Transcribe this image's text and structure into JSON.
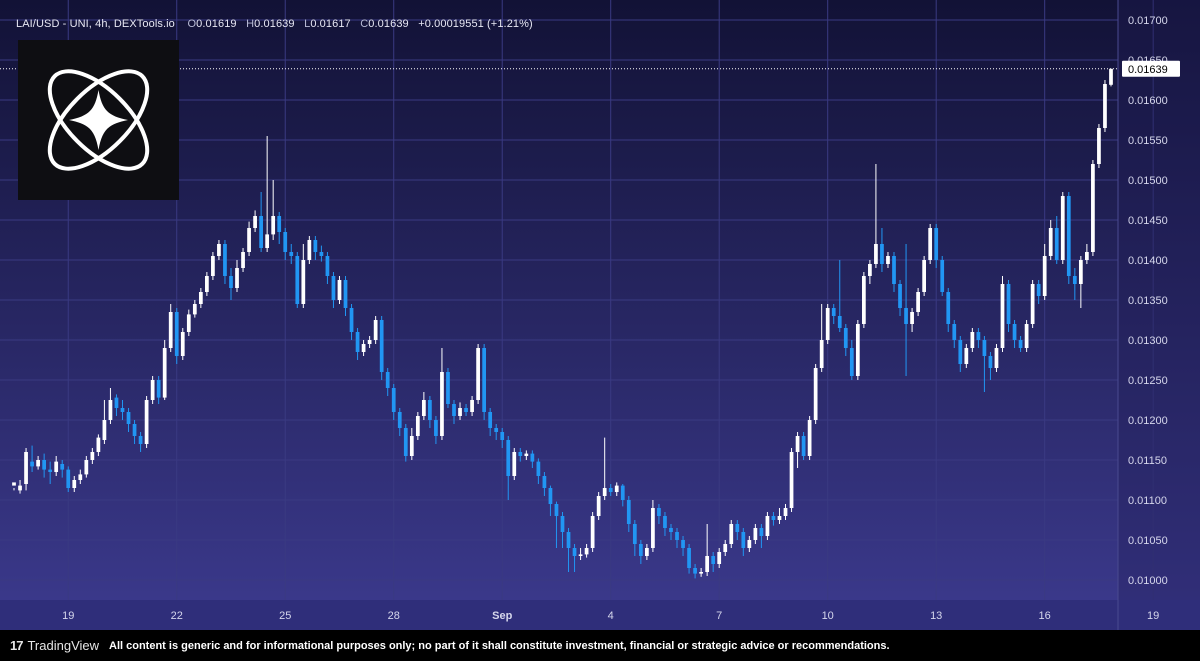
{
  "header": {
    "symbol": "LAI/USD - UNI, 4h, DEXTools.io",
    "o_label": "O",
    "o_value": "0.01619",
    "h_label": "H",
    "h_value": "0.01639",
    "l_label": "L",
    "l_value": "0.01617",
    "c_label": "C",
    "c_value": "0.01639",
    "change": "+0.00019551 (+1.21%)"
  },
  "footer": {
    "brand": "TradingView",
    "disclaimer": "All content is generic and for informational purposes only; no part of it shall constitute investment, financial or strategic advice or recommendations."
  },
  "colors": {
    "up": "#ffffff",
    "down": "#2196f3",
    "bg_top": "#121236",
    "bg_bottom": "#3c3a8e",
    "axis_bg": "#2f2e7a",
    "grid": "#3a3a82"
  },
  "icons": {
    "logo": "atom-star-logo-icon",
    "brand": "tradingview-icon"
  },
  "chart_data": {
    "type": "candlestick",
    "interval": "4h",
    "ylim": [
      0.00975,
      0.01725
    ],
    "y_ticks": [
      "0.01000",
      "0.01050",
      "0.01100",
      "0.01150",
      "0.01200",
      "0.01250",
      "0.01300",
      "0.01350",
      "0.01400",
      "0.01450",
      "0.01500",
      "0.01550",
      "0.01600",
      "0.01650",
      "0.01700"
    ],
    "x_ticks": [
      {
        "label": "19",
        "index": 9
      },
      {
        "label": "22",
        "index": 27
      },
      {
        "label": "25",
        "index": 45
      },
      {
        "label": "28",
        "index": 63
      },
      {
        "label": "Sep",
        "index": 81,
        "bold": true
      },
      {
        "label": "4",
        "index": 99
      },
      {
        "label": "7",
        "index": 117
      },
      {
        "label": "10",
        "index": 135
      },
      {
        "label": "13",
        "index": 153
      },
      {
        "label": "16",
        "index": 171
      },
      {
        "label": "19",
        "index": 189
      }
    ],
    "current_price": "0.01639",
    "candles": [
      [
        0.01118,
        0.01122,
        0.01115,
        0.01112
      ],
      [
        0.01112,
        0.01118,
        0.01125,
        0.01108
      ],
      [
        0.0112,
        0.0116,
        0.01165,
        0.01112
      ],
      [
        0.01148,
        0.01142,
        0.01168,
        0.01135
      ],
      [
        0.01142,
        0.0115,
        0.01155,
        0.01138
      ],
      [
        0.0115,
        0.01138,
        0.01158,
        0.01128
      ],
      [
        0.01138,
        0.01135,
        0.01148,
        0.0112
      ],
      [
        0.01135,
        0.01148,
        0.01155,
        0.0113
      ],
      [
        0.01145,
        0.01138,
        0.0115,
        0.01128
      ],
      [
        0.01138,
        0.01115,
        0.01142,
        0.0111
      ],
      [
        0.01115,
        0.01125,
        0.0113,
        0.0111
      ],
      [
        0.01125,
        0.01132,
        0.01138,
        0.0112
      ],
      [
        0.01132,
        0.0115,
        0.01155,
        0.01128
      ],
      [
        0.0115,
        0.0116,
        0.01165,
        0.01145
      ],
      [
        0.0116,
        0.01178,
        0.01182,
        0.01155
      ],
      [
        0.01175,
        0.012,
        0.01225,
        0.0117
      ],
      [
        0.012,
        0.01225,
        0.0124,
        0.01195
      ],
      [
        0.01228,
        0.01215,
        0.01232,
        0.01205
      ],
      [
        0.01215,
        0.0121,
        0.01225,
        0.012
      ],
      [
        0.0121,
        0.01195,
        0.01215,
        0.01185
      ],
      [
        0.01195,
        0.0118,
        0.012,
        0.0117
      ],
      [
        0.0118,
        0.0117,
        0.01185,
        0.0116
      ],
      [
        0.0117,
        0.01225,
        0.0123,
        0.01165
      ],
      [
        0.01225,
        0.0125,
        0.01255,
        0.0122
      ],
      [
        0.0125,
        0.01228,
        0.01255,
        0.0122
      ],
      [
        0.01228,
        0.0129,
        0.013,
        0.01225
      ],
      [
        0.0129,
        0.01335,
        0.01345,
        0.01285
      ],
      [
        0.01335,
        0.0128,
        0.0134,
        0.0127
      ],
      [
        0.0128,
        0.0131,
        0.01315,
        0.01275
      ],
      [
        0.0131,
        0.01332,
        0.01338,
        0.01305
      ],
      [
        0.01332,
        0.01345,
        0.0135,
        0.01328
      ],
      [
        0.01345,
        0.0136,
        0.01365,
        0.0134
      ],
      [
        0.0136,
        0.0138,
        0.01385,
        0.01355
      ],
      [
        0.0138,
        0.01405,
        0.0141,
        0.01375
      ],
      [
        0.01405,
        0.0142,
        0.01425,
        0.014
      ],
      [
        0.0142,
        0.0138,
        0.01425,
        0.0137
      ],
      [
        0.0138,
        0.01365,
        0.0139,
        0.0135
      ],
      [
        0.01365,
        0.0139,
        0.014,
        0.0136
      ],
      [
        0.0139,
        0.0141,
        0.01415,
        0.01385
      ],
      [
        0.0141,
        0.0144,
        0.01448,
        0.01405
      ],
      [
        0.0144,
        0.01455,
        0.01462,
        0.01435
      ],
      [
        0.01455,
        0.01415,
        0.01485,
        0.0141
      ],
      [
        0.01415,
        0.01432,
        0.01555,
        0.0141
      ],
      [
        0.01432,
        0.01455,
        0.015,
        0.01425
      ],
      [
        0.01455,
        0.01435,
        0.0146,
        0.0142
      ],
      [
        0.01435,
        0.0141,
        0.0144,
        0.014
      ],
      [
        0.0141,
        0.01405,
        0.0142,
        0.01395
      ],
      [
        0.01405,
        0.01345,
        0.0141,
        0.0134
      ],
      [
        0.01345,
        0.014,
        0.0142,
        0.0134
      ],
      [
        0.014,
        0.01425,
        0.0143,
        0.01395
      ],
      [
        0.01425,
        0.0141,
        0.0143,
        0.014
      ],
      [
        0.0141,
        0.01405,
        0.01418,
        0.01398
      ],
      [
        0.01405,
        0.0138,
        0.0141,
        0.0137
      ],
      [
        0.0138,
        0.0135,
        0.01385,
        0.0134
      ],
      [
        0.0135,
        0.01375,
        0.0138,
        0.01345
      ],
      [
        0.01375,
        0.0134,
        0.0138,
        0.0133
      ],
      [
        0.0134,
        0.0131,
        0.01345,
        0.013
      ],
      [
        0.0131,
        0.01285,
        0.01315,
        0.01275
      ],
      [
        0.01285,
        0.01295,
        0.013,
        0.0128
      ],
      [
        0.01295,
        0.013,
        0.01305,
        0.0129
      ],
      [
        0.013,
        0.01325,
        0.0133,
        0.01295
      ],
      [
        0.01325,
        0.0126,
        0.0133,
        0.0125
      ],
      [
        0.0126,
        0.0124,
        0.01265,
        0.0123
      ],
      [
        0.0124,
        0.0121,
        0.01245,
        0.012
      ],
      [
        0.0121,
        0.0119,
        0.01215,
        0.0118
      ],
      [
        0.0119,
        0.01155,
        0.01195,
        0.01148
      ],
      [
        0.01155,
        0.0118,
        0.0119,
        0.0115
      ],
      [
        0.0118,
        0.01205,
        0.0121,
        0.01175
      ],
      [
        0.01205,
        0.01225,
        0.01235,
        0.012
      ],
      [
        0.01225,
        0.012,
        0.0123,
        0.0119
      ],
      [
        0.012,
        0.0118,
        0.01205,
        0.0117
      ],
      [
        0.0118,
        0.0126,
        0.0129,
        0.01175
      ],
      [
        0.0126,
        0.0122,
        0.01265,
        0.01215
      ],
      [
        0.0122,
        0.01205,
        0.01225,
        0.01195
      ],
      [
        0.01205,
        0.01215,
        0.01222,
        0.012
      ],
      [
        0.01215,
        0.0121,
        0.0122,
        0.01205
      ],
      [
        0.0121,
        0.01225,
        0.0123,
        0.01205
      ],
      [
        0.01225,
        0.0129,
        0.01295,
        0.0122
      ],
      [
        0.0129,
        0.0121,
        0.01295,
        0.012
      ],
      [
        0.0121,
        0.0119,
        0.01215,
        0.0118
      ],
      [
        0.0119,
        0.01185,
        0.01195,
        0.01175
      ],
      [
        0.01185,
        0.01175,
        0.0119,
        0.01165
      ],
      [
        0.01175,
        0.0113,
        0.0118,
        0.011
      ],
      [
        0.0113,
        0.0116,
        0.01165,
        0.01125
      ],
      [
        0.0116,
        0.01155,
        0.01165,
        0.01148
      ],
      [
        0.01155,
        0.01158,
        0.01162,
        0.0115
      ],
      [
        0.01158,
        0.01148,
        0.01162,
        0.0114
      ],
      [
        0.01148,
        0.0113,
        0.01152,
        0.0112
      ],
      [
        0.0113,
        0.01115,
        0.01135,
        0.01105
      ],
      [
        0.01115,
        0.01095,
        0.01118,
        0.0108
      ],
      [
        0.01095,
        0.0108,
        0.01098,
        0.0104
      ],
      [
        0.0108,
        0.0106,
        0.01085,
        0.0104
      ],
      [
        0.0106,
        0.0104,
        0.01065,
        0.0101
      ],
      [
        0.0104,
        0.0103,
        0.01045,
        0.0101
      ],
      [
        0.0103,
        0.01032,
        0.0104,
        0.01025
      ],
      [
        0.01032,
        0.0104,
        0.01045,
        0.01028
      ],
      [
        0.0104,
        0.0108,
        0.01085,
        0.01035
      ],
      [
        0.0108,
        0.01105,
        0.0111,
        0.01075
      ],
      [
        0.01105,
        0.01115,
        0.01178,
        0.011
      ],
      [
        0.01115,
        0.0111,
        0.0112,
        0.01105
      ],
      [
        0.0111,
        0.01118,
        0.01122,
        0.01105
      ],
      [
        0.01118,
        0.011,
        0.0112,
        0.01092
      ],
      [
        0.011,
        0.0107,
        0.01105,
        0.0106
      ],
      [
        0.0107,
        0.01045,
        0.01075,
        0.0103
      ],
      [
        0.01045,
        0.0103,
        0.0105,
        0.0102
      ],
      [
        0.0103,
        0.0104,
        0.01045,
        0.01025
      ],
      [
        0.0104,
        0.0109,
        0.011,
        0.01035
      ],
      [
        0.0109,
        0.0108,
        0.01095,
        0.0107
      ],
      [
        0.0108,
        0.01065,
        0.01085,
        0.01055
      ],
      [
        0.01065,
        0.0106,
        0.0107,
        0.0105
      ],
      [
        0.0106,
        0.0105,
        0.01065,
        0.0104
      ],
      [
        0.0105,
        0.0104,
        0.01055,
        0.0103
      ],
      [
        0.0104,
        0.01015,
        0.01045,
        0.01008
      ],
      [
        0.01015,
        0.01008,
        0.0102,
        0.01002
      ],
      [
        0.01008,
        0.0101,
        0.01015,
        0.01004
      ],
      [
        0.0101,
        0.0103,
        0.0107,
        0.01005
      ],
      [
        0.0103,
        0.0102,
        0.01035,
        0.0101
      ],
      [
        0.0102,
        0.01035,
        0.0104,
        0.01015
      ],
      [
        0.01035,
        0.01045,
        0.0105,
        0.0103
      ],
      [
        0.01045,
        0.0107,
        0.01075,
        0.0104
      ],
      [
        0.0107,
        0.0106,
        0.01075,
        0.0105
      ],
      [
        0.0106,
        0.0104,
        0.01065,
        0.0103
      ],
      [
        0.0104,
        0.0105,
        0.01055,
        0.01035
      ],
      [
        0.0105,
        0.01065,
        0.0107,
        0.01045
      ],
      [
        0.01065,
        0.01055,
        0.0107,
        0.0104
      ],
      [
        0.01055,
        0.0108,
        0.01085,
        0.0105
      ],
      [
        0.0108,
        0.01075,
        0.01085,
        0.01068
      ],
      [
        0.01075,
        0.0108,
        0.0109,
        0.0107
      ],
      [
        0.0108,
        0.0109,
        0.01095,
        0.01075
      ],
      [
        0.0109,
        0.0116,
        0.01165,
        0.01085
      ],
      [
        0.0116,
        0.0118,
        0.01185,
        0.0114
      ],
      [
        0.0118,
        0.01155,
        0.01185,
        0.0115
      ],
      [
        0.01155,
        0.012,
        0.01205,
        0.0115
      ],
      [
        0.012,
        0.01265,
        0.0127,
        0.01195
      ],
      [
        0.01265,
        0.013,
        0.01345,
        0.0126
      ],
      [
        0.013,
        0.0134,
        0.01345,
        0.01295
      ],
      [
        0.0134,
        0.0133,
        0.01345,
        0.0132
      ],
      [
        0.0133,
        0.01315,
        0.014,
        0.0131
      ],
      [
        0.01315,
        0.0129,
        0.0132,
        0.0128
      ],
      [
        0.0129,
        0.01255,
        0.013,
        0.0125
      ],
      [
        0.01255,
        0.0132,
        0.01325,
        0.0125
      ],
      [
        0.0132,
        0.0138,
        0.01385,
        0.01315
      ],
      [
        0.0138,
        0.01395,
        0.014,
        0.0137
      ],
      [
        0.01395,
        0.0142,
        0.0152,
        0.0139
      ],
      [
        0.0142,
        0.01395,
        0.0144,
        0.01385
      ],
      [
        0.01395,
        0.01405,
        0.0141,
        0.0139
      ],
      [
        0.01405,
        0.0137,
        0.0141,
        0.0136
      ],
      [
        0.0137,
        0.0134,
        0.01375,
        0.0133
      ],
      [
        0.0134,
        0.0132,
        0.0142,
        0.01255
      ],
      [
        0.0132,
        0.01335,
        0.0134,
        0.0131
      ],
      [
        0.01335,
        0.0136,
        0.01365,
        0.0133
      ],
      [
        0.0136,
        0.014,
        0.01405,
        0.01355
      ],
      [
        0.014,
        0.0144,
        0.01445,
        0.01395
      ],
      [
        0.0144,
        0.014,
        0.01445,
        0.0139
      ],
      [
        0.014,
        0.0136,
        0.01405,
        0.01355
      ],
      [
        0.0136,
        0.0132,
        0.01365,
        0.0131
      ],
      [
        0.0132,
        0.013,
        0.01325,
        0.0129
      ],
      [
        0.013,
        0.0127,
        0.01305,
        0.0126
      ],
      [
        0.0127,
        0.0129,
        0.01295,
        0.01265
      ],
      [
        0.0129,
        0.0131,
        0.01315,
        0.01285
      ],
      [
        0.0131,
        0.013,
        0.01315,
        0.0129
      ],
      [
        0.013,
        0.0128,
        0.01305,
        0.01235
      ],
      [
        0.0128,
        0.01265,
        0.01285,
        0.0125
      ],
      [
        0.01265,
        0.0129,
        0.01295,
        0.0126
      ],
      [
        0.0129,
        0.0137,
        0.0138,
        0.01285
      ],
      [
        0.0137,
        0.0132,
        0.01375,
        0.0131
      ],
      [
        0.0132,
        0.013,
        0.01325,
        0.0129
      ],
      [
        0.013,
        0.0129,
        0.01305,
        0.01285
      ],
      [
        0.0129,
        0.0132,
        0.01325,
        0.01285
      ],
      [
        0.0132,
        0.0137,
        0.01375,
        0.01315
      ],
      [
        0.0137,
        0.01355,
        0.01375,
        0.01345
      ],
      [
        0.01355,
        0.01405,
        0.0142,
        0.0135
      ],
      [
        0.01405,
        0.0144,
        0.0145,
        0.014
      ],
      [
        0.0144,
        0.014,
        0.01455,
        0.01395
      ],
      [
        0.014,
        0.0148,
        0.01485,
        0.01395
      ],
      [
        0.0148,
        0.0138,
        0.01485,
        0.0137
      ],
      [
        0.0138,
        0.0137,
        0.0139,
        0.0135
      ],
      [
        0.0137,
        0.014,
        0.01405,
        0.0134
      ],
      [
        0.014,
        0.0141,
        0.0142,
        0.01395
      ],
      [
        0.0141,
        0.0152,
        0.01525,
        0.01405
      ],
      [
        0.0152,
        0.01565,
        0.0157,
        0.01515
      ],
      [
        0.01565,
        0.0162,
        0.01625,
        0.0156
      ],
      [
        0.01619,
        0.01639,
        0.01639,
        0.01617
      ]
    ]
  }
}
